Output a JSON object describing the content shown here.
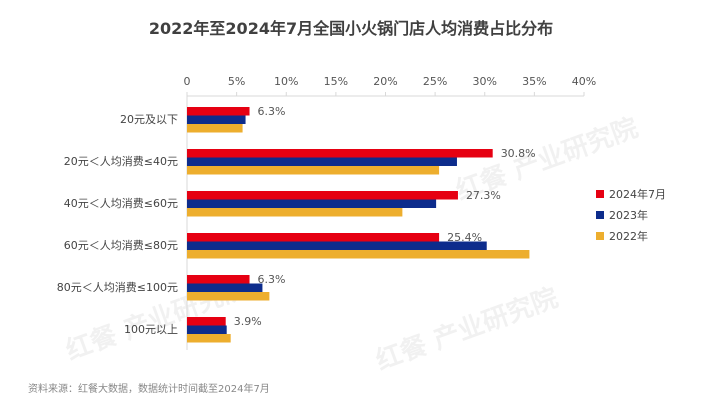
{
  "chart_data": {
    "type": "bar",
    "orientation": "horizontal",
    "title": "2022年至2024年7月全国小火锅门店人均消费占比分布",
    "categories": [
      "20元及以下",
      "20元＜人均消费≤40元",
      "40元＜人均消费≤60元",
      "60元＜人均消费≤80元",
      "80元＜人均消费≤100元",
      "100元以上"
    ],
    "series": [
      {
        "name": "2024年7月",
        "color": "#E60012",
        "values": [
          6.3,
          30.8,
          27.3,
          25.4,
          6.3,
          3.9
        ]
      },
      {
        "name": "2023年",
        "color": "#0D2C8C",
        "values": [
          5.9,
          27.2,
          25.1,
          30.2,
          7.6,
          4.0
        ]
      },
      {
        "name": "2022年",
        "color": "#EDAE2E",
        "values": [
          5.6,
          25.4,
          21.7,
          34.5,
          8.3,
          4.4
        ]
      }
    ],
    "data_labels": [
      "6.3%",
      "30.8%",
      "27.3%",
      "25.4%",
      "6.3%",
      "3.9%"
    ],
    "xlim": [
      0,
      40
    ],
    "xticks": [
      "0",
      "5%",
      "10%",
      "15%",
      "20%",
      "25%",
      "30%",
      "35%",
      "40%"
    ],
    "xaxis_position": "top",
    "grid": false,
    "legend_position": "right"
  },
  "source": "资料来源：红餐大数据，数据统计时间截至2024年7月",
  "watermark": "红餐 产业研究院"
}
